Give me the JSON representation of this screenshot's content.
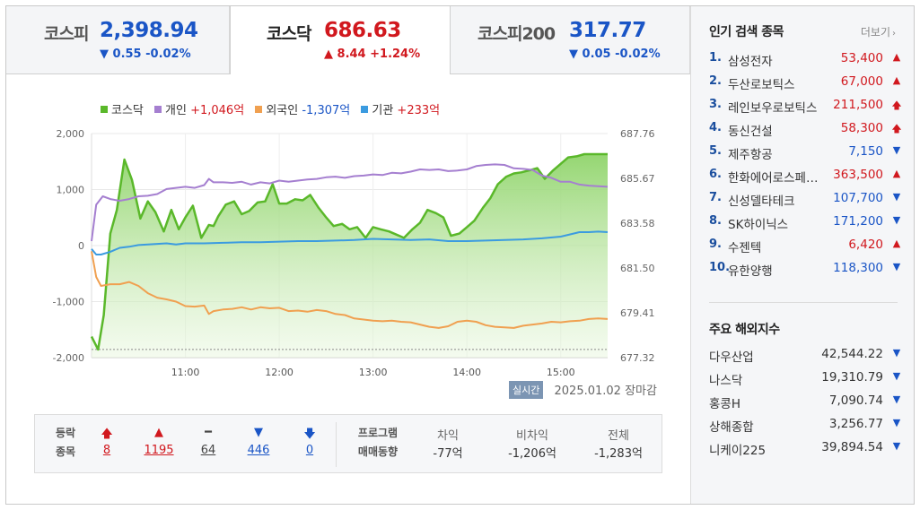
{
  "tabs": [
    {
      "name": "코스피",
      "value": "2,398.94",
      "arrow": "▼",
      "change": "0.55 -0.02%",
      "dir": "down",
      "active": false
    },
    {
      "name": "코스닥",
      "value": "686.63",
      "arrow": "▲",
      "change": "8.44 +1.24%",
      "dir": "up",
      "active": true
    },
    {
      "name": "코스피200",
      "value": "317.77",
      "arrow": "▼",
      "change": "0.05 -0.02%",
      "dir": "down",
      "active": false
    }
  ],
  "colors": {
    "kosdaq": "#5ab82a",
    "individual": "#a57fd0",
    "foreign": "#f0a050",
    "institution": "#3b9be0",
    "up": "#d1181e",
    "down": "#1a55c6"
  },
  "legend": [
    {
      "label": "코스닥",
      "value": "",
      "color": "#5ab82a",
      "val_class": ""
    },
    {
      "label": "개인",
      "value": "+1,046억",
      "color": "#a57fd0",
      "val_class": "val-red"
    },
    {
      "label": "외국인",
      "value": "-1,307억",
      "color": "#f0a050",
      "val_class": "val-blue"
    },
    {
      "label": "기관",
      "value": "+233억",
      "color": "#3b9be0",
      "val_class": "val-red"
    }
  ],
  "chart_data": {
    "type": "line",
    "title": "",
    "grid": true,
    "legend_position": "top",
    "x_ticks": [
      "11:00",
      "12:00",
      "13:00",
      "14:00",
      "15:00"
    ],
    "x_tick_positions_hours": [
      11,
      12,
      13,
      14,
      15
    ],
    "x_range_hours": [
      10.0,
      15.5
    ],
    "y_left_ticks": [
      "2,000",
      "1,000",
      "0",
      "-1,000",
      "-2,000"
    ],
    "y_left_range": [
      -2000,
      2000
    ],
    "y_right_ticks": [
      "687.76",
      "685.67",
      "683.58",
      "681.50",
      "679.41",
      "677.32"
    ],
    "y_right_range": [
      677.32,
      687.76
    ],
    "series": [
      {
        "name": "코스닥",
        "axis": "right",
        "color": "#5ab82a",
        "area": true,
        "x": [
          10.0,
          10.07,
          10.13,
          10.2,
          10.27,
          10.35,
          10.43,
          10.52,
          10.6,
          10.68,
          10.77,
          10.85,
          10.93,
          11.0,
          11.08,
          11.17,
          11.25,
          11.3,
          11.35,
          11.43,
          11.52,
          11.6,
          11.68,
          11.77,
          11.85,
          11.93,
          12.0,
          12.08,
          12.17,
          12.25,
          12.33,
          12.42,
          12.5,
          12.58,
          12.67,
          12.75,
          12.83,
          12.92,
          13.0,
          13.08,
          13.17,
          13.25,
          13.33,
          13.42,
          13.5,
          13.58,
          13.67,
          13.75,
          13.83,
          13.92,
          14.0,
          14.08,
          14.17,
          14.25,
          14.33,
          14.42,
          14.5,
          14.58,
          14.67,
          14.75,
          14.83,
          14.92,
          15.0,
          15.08,
          15.17,
          15.25,
          15.33,
          15.42,
          15.5
        ],
        "y": [
          678.3,
          677.7,
          679.3,
          683.1,
          684.2,
          686.55,
          685.6,
          683.8,
          684.6,
          684.1,
          683.2,
          684.2,
          683.3,
          683.85,
          684.4,
          682.9,
          683.5,
          683.45,
          683.9,
          684.45,
          684.6,
          684.0,
          684.15,
          684.55,
          684.6,
          685.4,
          684.5,
          684.5,
          684.7,
          684.65,
          684.9,
          684.3,
          683.85,
          683.45,
          683.55,
          683.3,
          683.4,
          682.9,
          683.4,
          683.3,
          683.2,
          683.05,
          682.9,
          683.3,
          683.6,
          684.2,
          684.05,
          683.85,
          683.0,
          683.1,
          683.4,
          683.7,
          684.3,
          684.75,
          685.4,
          685.75,
          685.9,
          685.95,
          686.05,
          686.15,
          685.65,
          686.05,
          686.35,
          686.65,
          686.7,
          686.8,
          686.8,
          686.8,
          686.8
        ]
      },
      {
        "name": "개인",
        "axis": "left",
        "color": "#a57fd0",
        "value_label": "+1,046억",
        "x": [
          10.0,
          10.05,
          10.12,
          10.2,
          10.3,
          10.4,
          10.5,
          10.6,
          10.7,
          10.8,
          10.9,
          11.0,
          11.1,
          11.2,
          11.25,
          11.3,
          11.4,
          11.5,
          11.6,
          11.7,
          11.8,
          11.9,
          12.0,
          12.1,
          12.2,
          12.3,
          12.4,
          12.5,
          12.6,
          12.7,
          12.8,
          12.9,
          13.0,
          13.1,
          13.2,
          13.3,
          13.4,
          13.5,
          13.6,
          13.7,
          13.8,
          13.9,
          14.0,
          14.1,
          14.2,
          14.3,
          14.4,
          14.5,
          14.6,
          14.7,
          14.8,
          14.9,
          15.0,
          15.1,
          15.2,
          15.3,
          15.4,
          15.5
        ],
        "y": [
          80,
          730,
          880,
          830,
          800,
          830,
          880,
          890,
          920,
          1010,
          1030,
          1050,
          1030,
          1080,
          1190,
          1130,
          1130,
          1120,
          1140,
          1090,
          1130,
          1110,
          1160,
          1140,
          1160,
          1180,
          1190,
          1220,
          1230,
          1210,
          1240,
          1250,
          1270,
          1260,
          1300,
          1290,
          1320,
          1360,
          1350,
          1360,
          1330,
          1340,
          1360,
          1420,
          1440,
          1450,
          1440,
          1380,
          1370,
          1350,
          1250,
          1210,
          1140,
          1140,
          1090,
          1070,
          1060,
          1050
        ]
      },
      {
        "name": "외국인",
        "axis": "left",
        "color": "#f0a050",
        "value_label": "-1,307억",
        "x": [
          10.0,
          10.05,
          10.1,
          10.2,
          10.3,
          10.4,
          10.5,
          10.6,
          10.7,
          10.8,
          10.9,
          11.0,
          11.1,
          11.2,
          11.25,
          11.3,
          11.4,
          11.5,
          11.6,
          11.7,
          11.8,
          11.9,
          12.0,
          12.1,
          12.2,
          12.3,
          12.4,
          12.5,
          12.6,
          12.7,
          12.8,
          12.9,
          13.0,
          13.1,
          13.2,
          13.3,
          13.4,
          13.5,
          13.6,
          13.7,
          13.8,
          13.9,
          14.0,
          14.1,
          14.2,
          14.3,
          14.4,
          14.5,
          14.6,
          14.7,
          14.8,
          14.9,
          15.0,
          15.1,
          15.2,
          15.3,
          15.4,
          15.5
        ],
        "y": [
          -100,
          -560,
          -720,
          -690,
          -690,
          -650,
          -720,
          -850,
          -930,
          -960,
          -1000,
          -1080,
          -1090,
          -1070,
          -1220,
          -1170,
          -1140,
          -1130,
          -1100,
          -1140,
          -1100,
          -1120,
          -1110,
          -1170,
          -1160,
          -1180,
          -1150,
          -1170,
          -1220,
          -1240,
          -1300,
          -1320,
          -1340,
          -1350,
          -1340,
          -1360,
          -1370,
          -1410,
          -1450,
          -1470,
          -1440,
          -1360,
          -1340,
          -1360,
          -1420,
          -1450,
          -1460,
          -1470,
          -1430,
          -1410,
          -1390,
          -1360,
          -1370,
          -1350,
          -1340,
          -1310,
          -1300,
          -1310
        ]
      },
      {
        "name": "기관",
        "axis": "left",
        "color": "#3b9be0",
        "value_label": "+233억",
        "x": [
          10.0,
          10.05,
          10.1,
          10.2,
          10.3,
          10.4,
          10.5,
          10.6,
          10.7,
          10.8,
          10.9,
          11.0,
          11.2,
          11.4,
          11.6,
          11.8,
          12.0,
          12.2,
          12.4,
          12.6,
          12.8,
          13.0,
          13.2,
          13.4,
          13.6,
          13.8,
          14.0,
          14.2,
          14.4,
          14.6,
          14.8,
          15.0,
          15.1,
          15.2,
          15.3,
          15.4,
          15.5
        ],
        "y": [
          -60,
          -160,
          -160,
          -110,
          -40,
          -20,
          10,
          20,
          30,
          40,
          20,
          40,
          40,
          50,
          60,
          60,
          70,
          80,
          80,
          90,
          100,
          120,
          110,
          100,
          110,
          80,
          80,
          90,
          100,
          110,
          130,
          160,
          200,
          240,
          240,
          250,
          240
        ]
      }
    ]
  },
  "status": {
    "realtime_label": "실시간",
    "date": "2025.01.02",
    "state": "장마감"
  },
  "stats": {
    "label_line1": "등락",
    "label_line2": "종목",
    "items": [
      {
        "arrow": "🡅",
        "value": "8",
        "dir": "up"
      },
      {
        "arrow": "▲",
        "value": "1195",
        "dir": "up"
      },
      {
        "arrow": "━",
        "value": "64",
        "dir": "flat"
      },
      {
        "arrow": "▼",
        "value": "446",
        "dir": "down"
      },
      {
        "arrow": "🡇",
        "value": "0",
        "dir": "down"
      }
    ],
    "program_line1": "프로그램",
    "program_line2": "매매동향",
    "program": [
      {
        "header": "차익",
        "value": "-77억"
      },
      {
        "header": "비차익",
        "value": "-1,206억"
      },
      {
        "header": "전체",
        "value": "-1,283억"
      }
    ]
  },
  "popular": {
    "title": "인기 검색 종목",
    "more": "더보기",
    "items": [
      {
        "rank": "1.",
        "name": "삼성전자",
        "price": "53,400",
        "dir": "up",
        "arrow": "▲"
      },
      {
        "rank": "2.",
        "name": "두산로보틱스",
        "price": "67,000",
        "dir": "up",
        "arrow": "▲"
      },
      {
        "rank": "3.",
        "name": "레인보우로보틱스",
        "price": "211,500",
        "dir": "up",
        "arrow": "🡅"
      },
      {
        "rank": "4.",
        "name": "동신건설",
        "price": "58,300",
        "dir": "up",
        "arrow": "🡅"
      },
      {
        "rank": "5.",
        "name": "제주항공",
        "price": "7,150",
        "dir": "down",
        "arrow": "▼"
      },
      {
        "rank": "6.",
        "name": "한화에어로스페이스",
        "price": "363,500",
        "dir": "up",
        "arrow": "▲"
      },
      {
        "rank": "7.",
        "name": "신성델타테크",
        "price": "107,700",
        "dir": "down",
        "arrow": "▼"
      },
      {
        "rank": "8.",
        "name": "SK하이닉스",
        "price": "171,200",
        "dir": "down",
        "arrow": "▼"
      },
      {
        "rank": "9.",
        "name": "수젠텍",
        "price": "6,420",
        "dir": "up",
        "arrow": "▲"
      },
      {
        "rank": "10.",
        "name": "유한양행",
        "price": "118,300",
        "dir": "down",
        "arrow": "▼"
      }
    ]
  },
  "world": {
    "title": "주요 해외지수",
    "items": [
      {
        "name": "다우산업",
        "value": "42,544.22",
        "arrow": "▼"
      },
      {
        "name": "나스닥",
        "value": "19,310.79",
        "arrow": "▼"
      },
      {
        "name": "홍콩H",
        "value": "7,090.74",
        "arrow": "▼"
      },
      {
        "name": "상해종합",
        "value": "3,256.77",
        "arrow": "▼"
      },
      {
        "name": "니케이225",
        "value": "39,894.54",
        "arrow": "▼"
      }
    ]
  }
}
